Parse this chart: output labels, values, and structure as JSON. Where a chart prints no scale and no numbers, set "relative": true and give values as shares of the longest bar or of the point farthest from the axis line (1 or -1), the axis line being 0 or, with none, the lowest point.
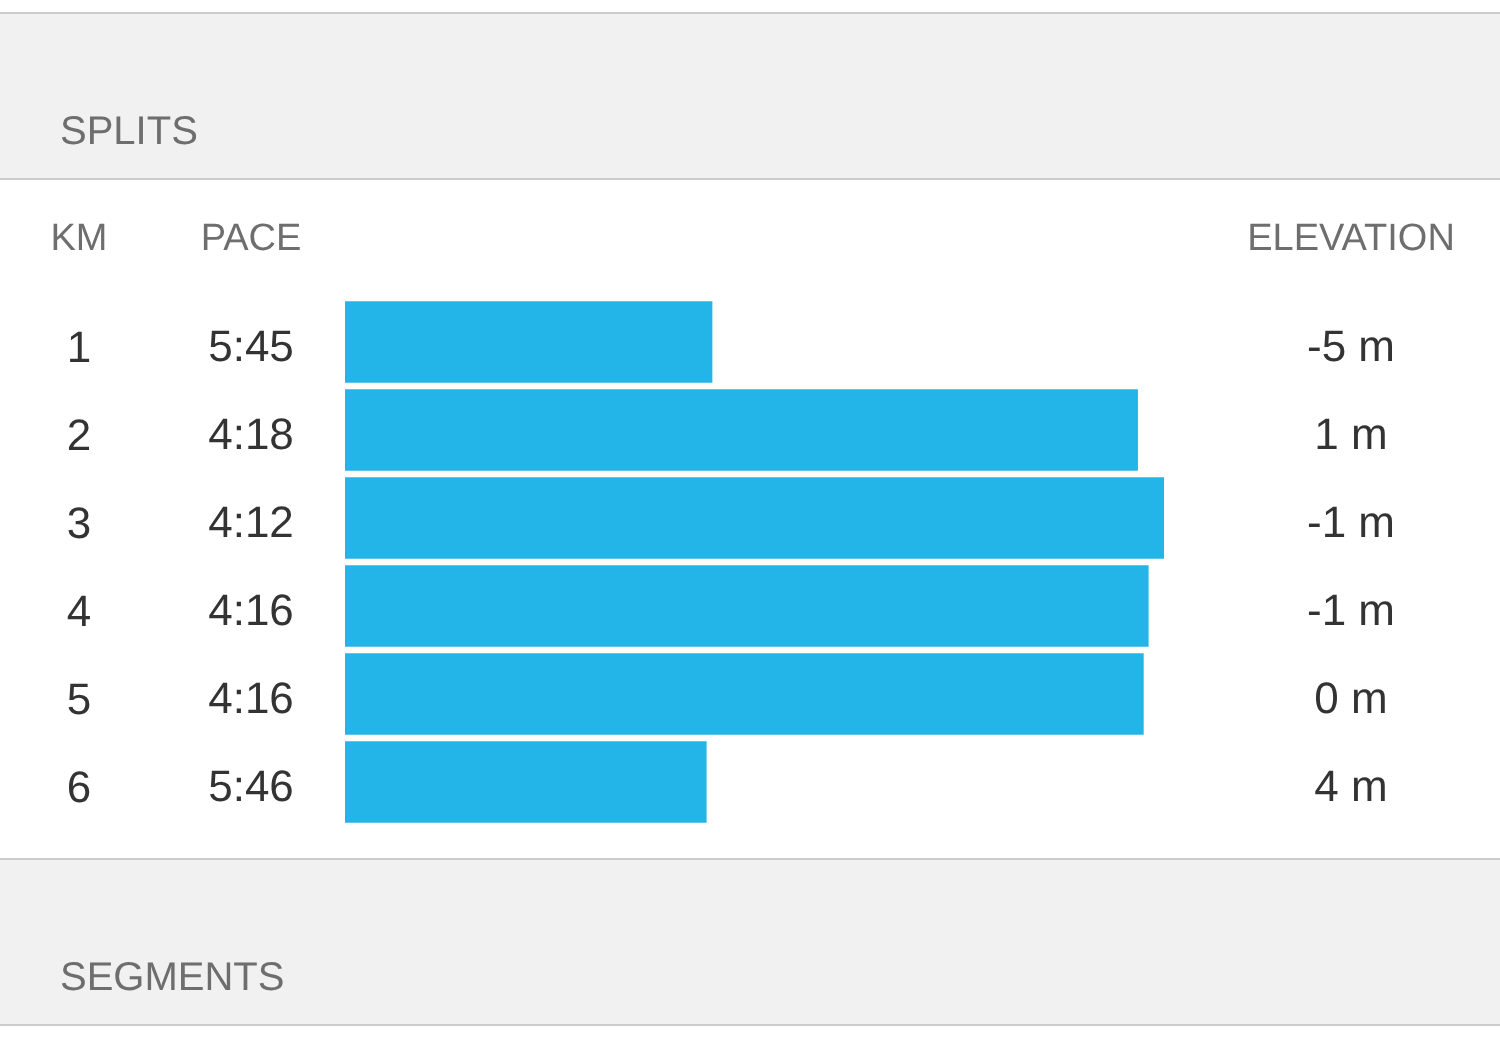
{
  "chart_data": {
    "type": "bar",
    "orientation": "horizontal",
    "relative": true,
    "title": "SPLITS",
    "ylabel": "KM",
    "xlabel": "PACE",
    "y2label": "ELEVATION",
    "categories": [
      "1",
      "2",
      "3",
      "4",
      "5",
      "6"
    ],
    "values": [
      0.448,
      0.967,
      1,
      0.98,
      0.974,
      0.441
    ],
    "color": "#23b4e8",
    "annotations": [
      "5:45",
      "4:18",
      "4:12",
      "4:16",
      "4:16",
      "5:46",
      "-5 m",
      "1 m",
      "-1 m",
      "-1 m",
      "0 m",
      "4 m",
      "SEGMENTS"
    ]
  }
}
